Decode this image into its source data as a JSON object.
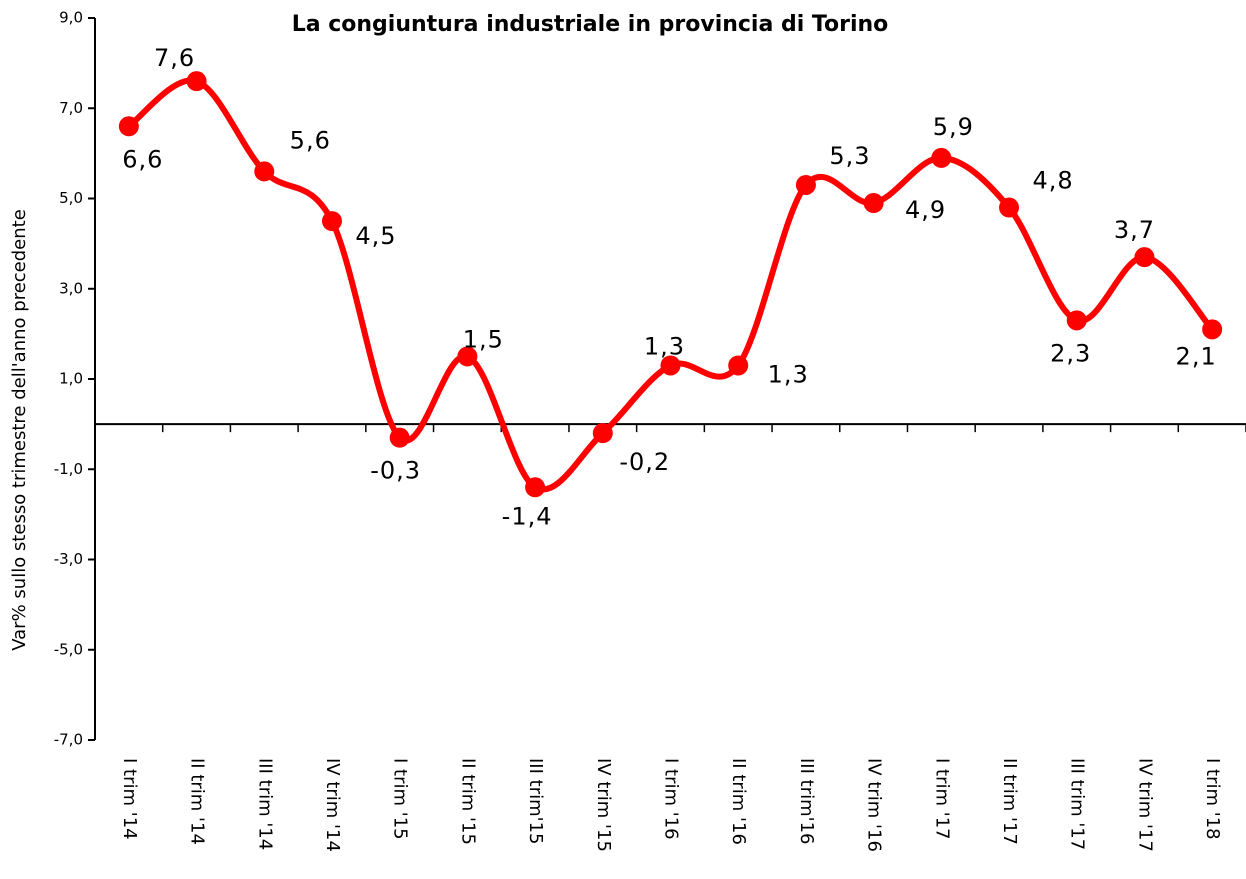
{
  "chart_data": {
    "type": "line",
    "title": "La congiuntura industriale in provincia di Torino",
    "y_label": "Var% sullo stesso trimestre dell'anno precedente",
    "categories": [
      "I trim '14",
      "II trim '14",
      "III trim '14",
      "IV trim '14",
      "I trim '15",
      "II trim '15",
      "III trim'15",
      "IV trim '15",
      "I trim '16",
      "II trim '16",
      "III trim'16",
      "IV trim '16",
      "I trim '17",
      "II trim '17",
      "III trim '17",
      "IV trim '17",
      "I trim '18"
    ],
    "series": [
      {
        "color": "#ff0000",
        "values": [
          6.6,
          7.6,
          5.6,
          4.5,
          -0.3,
          1.5,
          -1.4,
          -0.2,
          1.3,
          1.3,
          5.3,
          4.9,
          5.9,
          4.8,
          2.3,
          3.7,
          2.1
        ],
        "value_labels": [
          "6,6",
          "7,6",
          "5,6",
          "4,5",
          "-0,3",
          "1,5",
          "-1,4",
          "-0,2",
          "1,3",
          "1,3",
          "5,3",
          "4,9",
          "5,9",
          "4,8",
          "2,3",
          "3,7",
          "2,1"
        ]
      }
    ],
    "ylim": [
      -7,
      9
    ],
    "yticks": [
      {
        "value": -7,
        "label": "-7,0"
      },
      {
        "value": -5,
        "label": "-5,0"
      },
      {
        "value": -3,
        "label": "-3,0"
      },
      {
        "value": -1,
        "label": "-1,0"
      },
      {
        "value": 1,
        "label": "1,0"
      },
      {
        "value": 3,
        "label": "3,0"
      },
      {
        "value": 5,
        "label": "5,0"
      },
      {
        "value": 7,
        "label": "7,0"
      },
      {
        "value": 9,
        "label": "9,0"
      }
    ],
    "smooth": true
  }
}
